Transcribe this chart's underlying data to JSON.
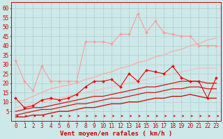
{
  "x": [
    0,
    1,
    2,
    3,
    4,
    5,
    6,
    7,
    8,
    9,
    10,
    11,
    12,
    13,
    14,
    15,
    16,
    17,
    18,
    19,
    20,
    21,
    22,
    23
  ],
  "series": [
    {
      "name": "light_pink_spiky",
      "color": "#ff9999",
      "linewidth": 0.8,
      "marker": "D",
      "markersize": 2.0,
      "values": [
        32,
        21,
        16,
        29,
        21,
        21,
        21,
        21,
        42,
        42,
        42,
        41,
        46,
        46,
        57,
        47,
        53,
        47,
        46,
        45,
        45,
        40,
        40,
        40
      ]
    },
    {
      "name": "light_pink_linear_high",
      "color": "#ffaaaa",
      "linewidth": 0.9,
      "marker": null,
      "markersize": 0,
      "values": [
        10,
        11,
        13,
        15,
        17,
        18,
        19,
        20,
        22,
        23,
        25,
        26,
        28,
        29,
        31,
        32,
        34,
        35,
        37,
        38,
        40,
        41,
        43,
        44
      ]
    },
    {
      "name": "light_pink_linear_low",
      "color": "#ffbbbb",
      "linewidth": 0.9,
      "marker": null,
      "markersize": 0,
      "values": [
        7,
        8,
        9,
        10,
        11,
        12,
        13,
        14,
        15,
        16,
        17,
        18,
        19,
        20,
        21,
        22,
        23,
        24,
        25,
        26,
        27,
        28,
        28,
        28
      ]
    },
    {
      "name": "red_spiky",
      "color": "#ee0000",
      "linewidth": 0.8,
      "marker": "D",
      "markersize": 2.0,
      "values": [
        12,
        7,
        8,
        11,
        12,
        11,
        12,
        14,
        18,
        21,
        21,
        22,
        18,
        25,
        21,
        27,
        26,
        25,
        29,
        23,
        21,
        21,
        12,
        23
      ]
    },
    {
      "name": "red_linear_high",
      "color": "#dd1111",
      "linewidth": 0.9,
      "marker": null,
      "markersize": 0,
      "values": [
        5,
        6,
        7,
        7,
        8,
        9,
        10,
        11,
        12,
        13,
        13,
        14,
        15,
        16,
        17,
        18,
        18,
        19,
        20,
        21,
        21,
        21,
        20,
        20
      ]
    },
    {
      "name": "red_linear_mid",
      "color": "#dd1111",
      "linewidth": 0.9,
      "marker": null,
      "markersize": 0,
      "values": [
        3,
        4,
        5,
        6,
        6,
        7,
        8,
        9,
        9,
        10,
        11,
        12,
        12,
        13,
        14,
        15,
        15,
        16,
        17,
        17,
        18,
        18,
        17,
        17
      ]
    },
    {
      "name": "red_linear_low",
      "color": "#cc0000",
      "linewidth": 0.9,
      "marker": null,
      "markersize": 0,
      "values": [
        2,
        2,
        3,
        3,
        4,
        5,
        5,
        6,
        7,
        7,
        8,
        9,
        9,
        10,
        10,
        11,
        12,
        12,
        13,
        13,
        14,
        13,
        12,
        12
      ]
    }
  ],
  "xlabel": "Vent moyen/en rafales ( km/h )",
  "xlabel_color": "#cc0000",
  "xlabel_fontsize": 6.5,
  "xtick_labels": [
    "0",
    "1",
    "2",
    "3",
    "4",
    "5",
    "6",
    "7",
    "8",
    "9",
    "10",
    "11",
    "12",
    "13",
    "14",
    "15",
    "16",
    "17",
    "18",
    "19",
    "20",
    "21",
    "22",
    "23"
  ],
  "ytick_vals": [
    5,
    10,
    15,
    20,
    25,
    30,
    35,
    40,
    45,
    50,
    55,
    60
  ],
  "ylim": [
    0,
    63
  ],
  "xlim": [
    -0.5,
    23.5
  ],
  "bg_color": "#cce8e8",
  "grid_color": "#aacccc",
  "tick_color": "#cc0000",
  "tick_fontsize": 5.5,
  "tick_label_color": "#cc0000",
  "arrow_color": "#cc0000"
}
